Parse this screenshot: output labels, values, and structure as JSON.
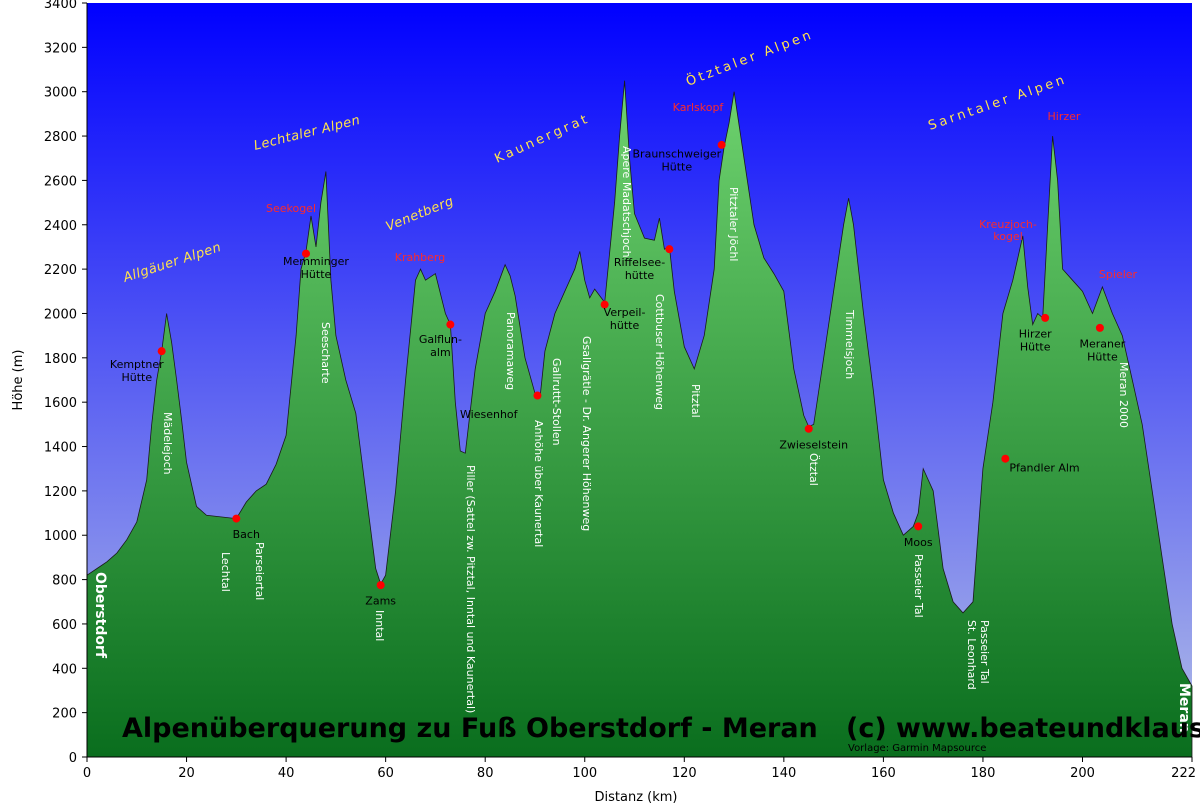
{
  "chart_data": {
    "type": "area",
    "title": "Alpenüberquerung zu Fuß Oberstdorf - Meran   (c) www.beateundklaus.de",
    "credit": "Vorlage: Garmin Mapsource",
    "xlabel": "Distanz  (km)",
    "ylabel": "Höhe (m)",
    "xlim": [
      0,
      222
    ],
    "ylim": [
      0,
      3400
    ],
    "x_ticks": [
      0,
      20,
      40,
      60,
      80,
      100,
      120,
      140,
      160,
      180,
      200,
      222
    ],
    "y_ticks": [
      0,
      200,
      400,
      600,
      800,
      1000,
      1200,
      1400,
      1600,
      1800,
      2000,
      2200,
      2400,
      2600,
      2800,
      3000,
      3200,
      3400
    ],
    "grid": false,
    "colors": {
      "sky_top": "#0000ff",
      "sky_bottom": "#b3bfe6",
      "fill_top": "#6fd36f",
      "fill_bottom": "#0a6e1e",
      "marker": "#ff0000",
      "outline": "#1a1a1a"
    },
    "profile": {
      "x": [
        0,
        2,
        4,
        6,
        8,
        10,
        12,
        13,
        14,
        15,
        16,
        17,
        18,
        19,
        20,
        22,
        24,
        26,
        28,
        30,
        32,
        34,
        36,
        38,
        40,
        42,
        43,
        44,
        45,
        46,
        47,
        48,
        49,
        50,
        52,
        54,
        56,
        58,
        59,
        60,
        62,
        64,
        66,
        67,
        68,
        70,
        72,
        73,
        74,
        75,
        76,
        78,
        80,
        82,
        84,
        85,
        86,
        88,
        90,
        91,
        92,
        94,
        96,
        98,
        99,
        100,
        101,
        102,
        104,
        106,
        107,
        108,
        109,
        110,
        112,
        114,
        115,
        116,
        117,
        118,
        120,
        122,
        124,
        126,
        127,
        128,
        129,
        130,
        132,
        134,
        136,
        138,
        140,
        142,
        144,
        145,
        146,
        148,
        150,
        152,
        153,
        154,
        156,
        158,
        160,
        162,
        164,
        166,
        167,
        168,
        170,
        172,
        174,
        176,
        178,
        180,
        182,
        184,
        186,
        188,
        189,
        190,
        191,
        192,
        193,
        194,
        195,
        196,
        198,
        200,
        202,
        204,
        206,
        208,
        210,
        212,
        214,
        216,
        218,
        220,
        222
      ],
      "y": [
        820,
        850,
        880,
        920,
        980,
        1060,
        1250,
        1500,
        1700,
        1830,
        2000,
        1870,
        1700,
        1520,
        1330,
        1130,
        1090,
        1085,
        1080,
        1075,
        1150,
        1200,
        1230,
        1320,
        1450,
        1900,
        2200,
        2280,
        2440,
        2300,
        2500,
        2640,
        2150,
        1900,
        1700,
        1550,
        1200,
        850,
        780,
        820,
        1200,
        1700,
        2150,
        2200,
        2150,
        2180,
        2000,
        1950,
        1600,
        1380,
        1370,
        1750,
        2000,
        2100,
        2220,
        2170,
        2080,
        1800,
        1640,
        1620,
        1830,
        2000,
        2100,
        2200,
        2280,
        2150,
        2070,
        2110,
        2050,
        2500,
        2800,
        3050,
        2700,
        2450,
        2340,
        2330,
        2430,
        2290,
        2300,
        2100,
        1850,
        1750,
        1900,
        2200,
        2600,
        2750,
        2860,
        3000,
        2700,
        2400,
        2250,
        2180,
        2100,
        1750,
        1540,
        1490,
        1500,
        1800,
        2100,
        2400,
        2520,
        2400,
        2000,
        1650,
        1250,
        1100,
        1000,
        1040,
        1100,
        1300,
        1200,
        850,
        700,
        650,
        700,
        1300,
        1600,
        2000,
        2150,
        2350,
        2120,
        1950,
        2000,
        1980,
        2400,
        2800,
        2600,
        2200,
        2150,
        2100,
        2000,
        2120,
        2000,
        1900,
        1700,
        1500,
        1200,
        900,
        600,
        400,
        320
      ]
    },
    "ranges": [
      "Allgäuer Alpen",
      "Lechtaler Alpen",
      "Venetberg",
      "Kaunergrat",
      "Ötztaler Alpen",
      "Sarntaler Alpen"
    ],
    "markers": [
      {
        "x": 15,
        "y": 1830,
        "label": "Kemptner Hütte"
      },
      {
        "x": 30,
        "y": 1075,
        "label": "Bach"
      },
      {
        "x": 44,
        "y": 2270,
        "label": "Memminger Hütte"
      },
      {
        "x": 59,
        "y": 775,
        "label": "Zams"
      },
      {
        "x": 73,
        "y": 1950,
        "label": "Galflun-alm"
      },
      {
        "x": 90.5,
        "y": 1630,
        "label": "Wiesenhof"
      },
      {
        "x": 104,
        "y": 2040,
        "label": "Verpeil-hütte"
      },
      {
        "x": 117,
        "y": 2290,
        "label": "Riffelsee-hütte"
      },
      {
        "x": 127.5,
        "y": 2760,
        "label": "Braunschweiger Hütte"
      },
      {
        "x": 145,
        "y": 1480,
        "label": "Zwieselstein"
      },
      {
        "x": 167,
        "y": 1040,
        "label": "Moos"
      },
      {
        "x": 184.5,
        "y": 1345,
        "label": "Pfandler Alm"
      },
      {
        "x": 192.5,
        "y": 1980,
        "label": "Hirzer Hütte"
      },
      {
        "x": 203.5,
        "y": 1935,
        "label": "Meraner Hütte"
      }
    ],
    "peaks": [
      "Seekogel",
      "Krahberg",
      "Karlskopf",
      "Kreuzjoch-kogel",
      "Hirzer",
      "Spieler"
    ],
    "routes": [
      "Oberstdorf",
      "Mädelejoch",
      "Lechtal",
      "Parseiertal",
      "Seescharte",
      "Inntal",
      "Piller (Sattel zw. Pitztal, Inntal und Kaunertal)",
      "Panoramaweg",
      "Anhöhe über Kaunertal",
      "Gallruttt-Stollen",
      "Gsallgrätle - Dr. Angerer Höhenweg",
      "Apere Madatschjoch",
      "Cottbuser Höhenweg",
      "Pitztal",
      "Pitztaler Jöchl",
      "Ötztal",
      "Timmelsjoch",
      "Passeier Tal",
      "St. Leonhard Passeier Tal",
      "Meran 2000",
      "Meran"
    ]
  }
}
